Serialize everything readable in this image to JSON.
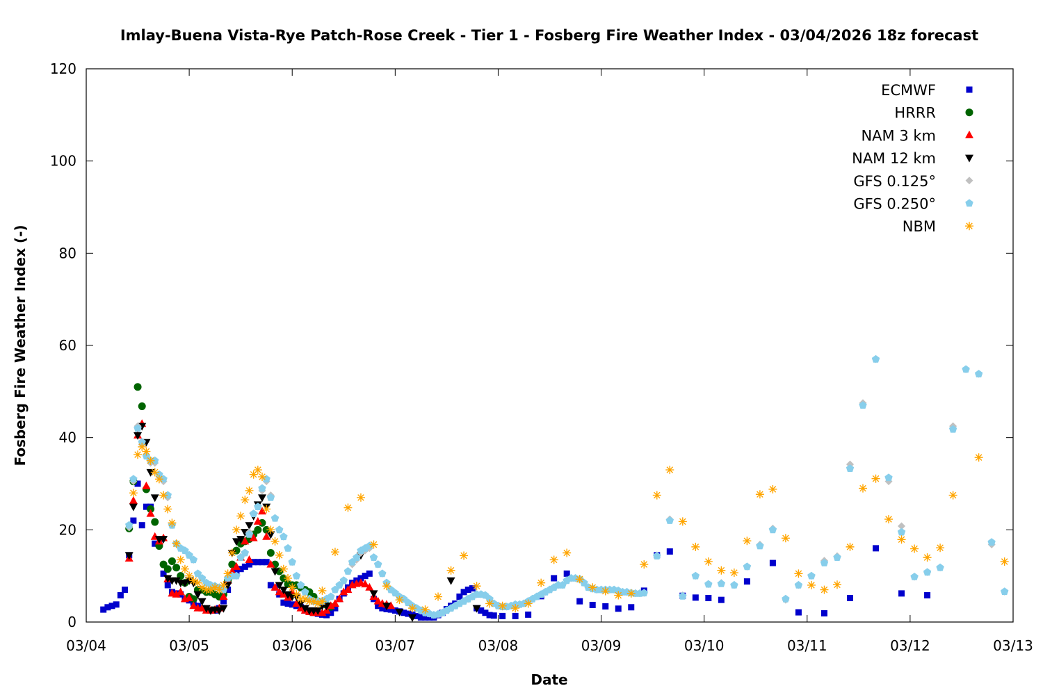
{
  "chart_data": {
    "type": "scatter",
    "title": "Imlay-Buena Vista-Rye Patch-Rose Creek - Tier 1 - Fosberg Fire Weather Index - 03/04/2026 18z forecast",
    "xlabel": "Date",
    "ylabel": "Fosberg Fire Weather Index (-)",
    "x_unit": "hours since 03/04 00z",
    "xlim": [
      0,
      216
    ],
    "ylim": [
      0,
      120
    ],
    "yticks": [
      0,
      20,
      40,
      60,
      80,
      100,
      120
    ],
    "xticks": [
      {
        "hour": 0,
        "label": "03/04"
      },
      {
        "hour": 24,
        "label": "03/05"
      },
      {
        "hour": 48,
        "label": "03/06"
      },
      {
        "hour": 72,
        "label": "03/07"
      },
      {
        "hour": 96,
        "label": "03/08"
      },
      {
        "hour": 120,
        "label": "03/09"
      },
      {
        "hour": 144,
        "label": "03/10"
      },
      {
        "hour": 168,
        "label": "03/11"
      },
      {
        "hour": 192,
        "label": "03/12"
      },
      {
        "hour": 216,
        "label": "03/13"
      }
    ],
    "grid": false,
    "legend_position": "top-right",
    "series": [
      {
        "name": "ECMWF",
        "marker": "square",
        "color": "#0000cc",
        "segments": [
          {
            "start": 4,
            "step": 1,
            "values": [
              2.7,
              3.2,
              3.5,
              3.8,
              5.8,
              7,
              14.5,
              22,
              30,
              21,
              25,
              25,
              17,
              17,
              10.5,
              8,
              6.5,
              6.2,
              6,
              5,
              4.7,
              4.2,
              3.5,
              3,
              2.8,
              2.5,
              2.5,
              3,
              4.5,
              7,
              10,
              11,
              11.5,
              12,
              12.5,
              13,
              13,
              13,
              13,
              8,
              7.5,
              6,
              4.2,
              4,
              3.8,
              3.5,
              3.2,
              2.5,
              2.2,
              2,
              1.8,
              1.6,
              1.5,
              2,
              3,
              5,
              6.2,
              7.5,
              8.5,
              9,
              9.5,
              10,
              10.5,
              5,
              3.5,
              3,
              2.8,
              2.7,
              2.5,
              2.3,
              2,
              1.8,
              1.6,
              1.3,
              1,
              1,
              1,
              1,
              1.5,
              2,
              2.8,
              3.5,
              4,
              5.5,
              6.5,
              7,
              7.3,
              3,
              2.5,
              2,
              1.5,
              1.4
            ]
          },
          {
            "start": 97,
            "step": 3,
            "values": [
              1.3,
              1.3,
              1.6,
              5.6,
              9.5,
              10.5,
              4.5,
              3.7,
              3.4,
              2.9,
              3.2,
              6.8,
              14.5,
              15.3,
              5.7,
              5.3,
              5.2,
              4.8
            ]
          },
          {
            "start": 154,
            "step": 6,
            "values": [
              8.8,
              12.8,
              2.1,
              1.9,
              5.2,
              16,
              6.2,
              5.8
            ]
          }
        ]
      },
      {
        "name": "HRRR",
        "marker": "circle",
        "color": "#006400",
        "segments": [
          {
            "start": 10,
            "step": 1,
            "values": [
              20.3,
              30.5,
              51,
              46.8,
              28.8,
              24.5,
              21.7,
              16.5,
              12.5,
              11.5,
              13.2,
              11.8,
              10,
              8.5,
              5.5,
              5,
              7,
              7,
              6.5,
              6.5,
              6,
              5.5,
              6,
              9,
              12.5,
              15.5,
              17,
              17.5,
              18,
              19,
              20,
              21.5,
              20,
              15,
              12.5,
              11,
              9.5,
              8.2,
              8,
              8,
              7.5,
              7,
              6.5,
              5.5,
              4.5,
              4,
              3.7,
              3.3
            ]
          }
        ]
      },
      {
        "name": "NAM 3 km",
        "marker": "triangle-up",
        "color": "#ff0000",
        "segments": [
          {
            "start": 10,
            "step": 1,
            "values": [
              13.8,
              26.3,
              40.5,
              43,
              29.5,
              23.5,
              18.5,
              17.5,
              18.2,
              9.3,
              6.2,
              6,
              6.5,
              5,
              5.2,
              3.5,
              3,
              3,
              2.5,
              2.5,
              2.7,
              3,
              5.5,
              9,
              11,
              12,
              14,
              17.5,
              13.5,
              18.2,
              21.8,
              24,
              18.5,
              12.5,
              7.5,
              6.5,
              6,
              5.3,
              6.5,
              4,
              3,
              2.5,
              2.2,
              2,
              2,
              2,
              2.5,
              3.5,
              4,
              5,
              6.5,
              7,
              8,
              8.3,
              8.5,
              8.2,
              7.5,
              5.5,
              4.5,
              4,
              3.8,
              3.5
            ]
          }
        ]
      },
      {
        "name": "NAM 12 km",
        "marker": "triangle-down",
        "color": "#000000",
        "segments": [
          {
            "start": 10,
            "step": 1,
            "values": [
              14.5,
              25,
              40.5,
              42.5,
              39,
              32.5,
              27,
              18,
              18,
              9.5,
              9,
              9,
              8.5,
              8.5,
              9,
              8.5,
              6,
              4.5,
              3,
              2.5,
              2.7,
              2.5,
              3,
              8,
              15,
              17.5,
              18,
              19.5,
              21,
              23,
              25.5,
              27,
              25,
              19,
              11,
              8,
              7,
              6,
              5.5,
              5.5,
              4,
              3,
              2.5,
              2.5,
              2.5,
              3.5,
              3.5
            ]
          },
          {
            "start": 64,
            "step": 3,
            "values": [
              14.5,
              6.2,
              3.5,
              2.2,
              1
            ]
          },
          {
            "start": 85,
            "step": 6,
            "values": [
              9,
              3
            ]
          }
        ]
      },
      {
        "name": "GFS 0.125°",
        "marker": "diamond",
        "color": "#c0c0c0",
        "segments": [
          {
            "start": 10,
            "step": 1,
            "values": [
              20.5,
              30.5,
              42.5,
              38.5,
              36,
              34.5,
              34.5,
              31.5,
              30.5,
              27,
              21,
              17,
              16,
              15.5,
              14.5,
              13.5,
              10.5,
              9.5,
              8.5,
              8,
              7.8,
              7.5,
              7,
              9.5,
              10,
              10,
              14,
              15,
              19.5,
              23.5,
              25,
              28.5,
              30.5,
              27.5,
              22.5,
              20,
              18.5,
              16,
              13,
              10,
              8,
              6.5,
              5,
              4.5,
              4.5,
              4.5,
              5,
              5.5,
              7,
              8,
              9,
              11,
              12.5,
              13.5,
              15,
              15.5,
              16,
              14,
              12.5,
              10.5,
              8.5,
              7,
              6.3,
              5.5,
              5,
              4.2,
              3.5,
              3,
              2.5,
              2,
              1.8,
              1.5,
              1.7,
              2,
              2.5,
              3,
              3.5,
              4,
              4.5,
              5,
              5.5,
              6,
              6,
              5.8,
              5,
              4,
              3.5,
              3.3,
              3.3,
              3.5,
              3.8,
              3.8,
              4,
              4.5,
              5,
              5.5,
              6,
              6.5,
              7,
              7.5,
              8,
              8,
              9,
              9.5,
              9.5,
              9.3,
              8.5,
              7.5,
              7.2,
              7,
              7,
              7,
              7,
              7,
              6.8,
              6.5,
              6.5,
              6.3,
              6.2,
              6.2,
              6.3
            ]
          },
          {
            "start": 133,
            "step": 3,
            "values": [
              14.5,
              22.3,
              5.8,
              10,
              8.2,
              8.5,
              8,
              12,
              16.8,
              20.3,
              4.8,
              8,
              10,
              13.3,
              14.3,
              34.2,
              47.5,
              57,
              30.5,
              20.8,
              9.8,
              10.8,
              11.8,
              42.5,
              54.8,
              53.8,
              16.8,
              6.6
            ]
          }
        ]
      },
      {
        "name": "GFS 0.250°",
        "marker": "pentagon",
        "color": "#87ceeb",
        "segments": [
          {
            "start": 10,
            "step": 1,
            "values": [
              21,
              31,
              42,
              39,
              36,
              35,
              35,
              32,
              31,
              27.5,
              21,
              17,
              16,
              15.5,
              14.5,
              13.5,
              10.5,
              9.5,
              8.5,
              8,
              7.8,
              7.5,
              7,
              9.5,
              10,
              10,
              14,
              15,
              19,
              23.5,
              25,
              29,
              31,
              27,
              22.5,
              20,
              18.5,
              16,
              13,
              10,
              8,
              6.5,
              5,
              4.5,
              4.5,
              4.5,
              5,
              5.5,
              7,
              8,
              9,
              11,
              13,
              14,
              15.5,
              16,
              16.5,
              14,
              12.5,
              10.5,
              8.5,
              7,
              6.3,
              5.5,
              5,
              4.2,
              3.5,
              3,
              2.5,
              2,
              1.8,
              1.5,
              1.7,
              2,
              2.5,
              3,
              3.5,
              4,
              4.5,
              5,
              5.5,
              6,
              6,
              5.8,
              5,
              4,
              3.5,
              3.3,
              3.3,
              3.5,
              3.8,
              3.8,
              4,
              4.5,
              5,
              5.5,
              6,
              6.5,
              7,
              7.5,
              8,
              8,
              9,
              9.5,
              9.5,
              9.3,
              8.5,
              7.5,
              7.2,
              7,
              7,
              7,
              7,
              7,
              6.8,
              6.5,
              6.5,
              6.3,
              6.2,
              6.2,
              6.3
            ]
          },
          {
            "start": 133,
            "step": 3,
            "values": [
              14.3,
              22,
              5.6,
              10,
              8.2,
              8.3,
              8,
              12,
              16.5,
              20,
              5,
              8,
              10,
              12.8,
              14,
              33.3,
              47,
              57,
              31.3,
              19.5,
              9.8,
              10.8,
              11.8,
              41.8,
              54.8,
              53.8,
              17.3,
              6.6
            ]
          }
        ]
      },
      {
        "name": "NBM",
        "marker": "asterisk",
        "color": "#ffa500",
        "segments": [
          {
            "start": 11,
            "step": 1,
            "values": [
              28,
              36.3,
              38,
              37,
              35,
              32.5,
              31,
              27.5,
              24.5,
              21.5,
              17,
              13.5,
              11.5,
              10,
              9,
              8.5,
              7.5,
              7,
              7,
              7.5,
              7,
              8,
              10.5,
              15,
              20,
              23,
              26.5,
              28.5,
              32,
              33,
              31.5,
              24.5,
              20,
              17.5,
              14.5,
              11.5,
              9.5,
              7.5,
              6,
              5,
              5,
              4.5,
              4.5,
              4,
              4.5
            ]
          },
          {
            "start": 55,
            "step": 3,
            "values": [
              6.8,
              15.2,
              24.8,
              27,
              16.8,
              7.8,
              4.8,
              3,
              2.7,
              5.5,
              11.2,
              14.4,
              7.8,
              4,
              3.5,
              3,
              4,
              8.5,
              13.5,
              15,
              9.3,
              7.5,
              6.7,
              5.8,
              6.2,
              12.5,
              27.5,
              33,
              21.8,
              16.3,
              13.1,
              11.2,
              10.7,
              17.6,
              27.7,
              28.8,
              18.2,
              10.5,
              8,
              7,
              8.1,
              16.3,
              29,
              31.1,
              22.3,
              17.9,
              15.9,
              14,
              16.1,
              27.5
            ]
          },
          {
            "start": 208,
            "step": 6,
            "values": [
              35.7,
              13.1
            ]
          }
        ]
      }
    ]
  }
}
